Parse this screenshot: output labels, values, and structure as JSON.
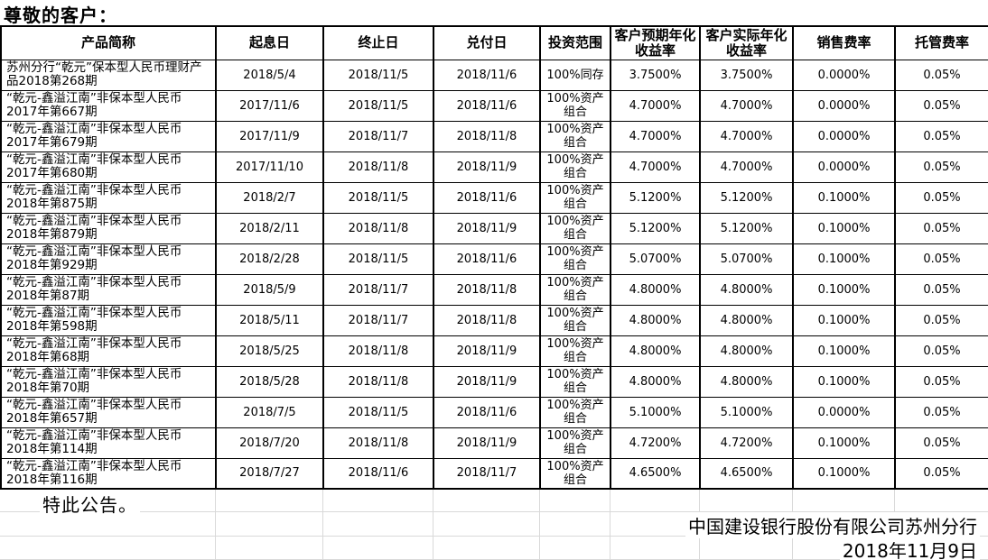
{
  "page": {
    "greeting": "尊敬的客户：",
    "closing": "特此公告。",
    "signature": "中国建设银行股份有限公司苏州分行",
    "date_line": "2018年11月9日"
  },
  "table": {
    "columns": [
      "产品简称",
      "起息日",
      "终止日",
      "兑付日",
      "投资范围",
      "客户预期年化收益率",
      "客户实际年化收益率",
      "销售费率",
      "托管费率"
    ],
    "rows": [
      [
        "苏州分行“乾元”保本型人民币理财产品2018第268期",
        "2018/5/4",
        "2018/11/5",
        "2018/11/6",
        "100%同存",
        "3.7500%",
        "3.7500%",
        "0.0000%",
        "0.05%"
      ],
      [
        "“乾元-鑫溢江南”非保本型人民币2017年第667期",
        "2017/11/6",
        "2018/11/5",
        "2018/11/6",
        "100%资产组合",
        "4.7000%",
        "4.7000%",
        "0.0000%",
        "0.05%"
      ],
      [
        "“乾元-鑫溢江南”非保本型人民币2017年第679期",
        "2017/11/9",
        "2018/11/7",
        "2018/11/8",
        "100%资产组合",
        "4.7000%",
        "4.7000%",
        "0.0000%",
        "0.05%"
      ],
      [
        "“乾元-鑫溢江南”非保本型人民币2017年第680期",
        "2017/11/10",
        "2018/11/8",
        "2018/11/9",
        "100%资产组合",
        "4.7000%",
        "4.7000%",
        "0.0000%",
        "0.05%"
      ],
      [
        "“乾元-鑫溢江南”非保本型人民币2018年第875期",
        "2018/2/7",
        "2018/11/5",
        "2018/11/6",
        "100%资产组合",
        "5.1200%",
        "5.1200%",
        "0.1000%",
        "0.05%"
      ],
      [
        "“乾元-鑫溢江南”非保本型人民币2018年第879期",
        "2018/2/11",
        "2018/11/8",
        "2018/11/9",
        "100%资产组合",
        "5.1200%",
        "5.1200%",
        "0.1000%",
        "0.05%"
      ],
      [
        "“乾元-鑫溢江南”非保本型人民币2018年第929期",
        "2018/2/28",
        "2018/11/5",
        "2018/11/6",
        "100%资产组合",
        "5.0700%",
        "5.0700%",
        "0.1000%",
        "0.05%"
      ],
      [
        "“乾元-鑫溢江南”非保本型人民币2018年第87期",
        "2018/5/9",
        "2018/11/7",
        "2018/11/8",
        "100%资产组合",
        "4.8000%",
        "4.8000%",
        "0.1000%",
        "0.05%"
      ],
      [
        "“乾元-鑫溢江南”非保本型人民币2018年第598期",
        "2018/5/11",
        "2018/11/7",
        "2018/11/8",
        "100%资产组合",
        "4.8000%",
        "4.8000%",
        "0.1000%",
        "0.05%"
      ],
      [
        "“乾元-鑫溢江南”非保本型人民币2018年第68期",
        "2018/5/25",
        "2018/11/8",
        "2018/11/9",
        "100%资产组合",
        "4.8000%",
        "4.8000%",
        "0.1000%",
        "0.05%"
      ],
      [
        "“乾元-鑫溢江南”非保本型人民币2018年第70期",
        "2018/5/28",
        "2018/11/8",
        "2018/11/9",
        "100%资产组合",
        "4.8000%",
        "4.8000%",
        "0.1000%",
        "0.05%"
      ],
      [
        "“乾元-鑫溢江南”非保本型人民币2018年第657期",
        "2018/7/5",
        "2018/11/5",
        "2018/11/6",
        "100%资产组合",
        "5.1000%",
        "5.1000%",
        "0.0000%",
        "0.05%"
      ],
      [
        "“乾元-鑫溢江南”非保本型人民币2018年第114期",
        "2018/7/20",
        "2018/11/8",
        "2018/11/9",
        "100%资产组合",
        "4.7200%",
        "4.7200%",
        "0.1000%",
        "0.05%"
      ],
      [
        "“乾元-鑫溢江南”非保本型人民币2018年第116期",
        "2018/7/27",
        "2018/11/6",
        "2018/11/7",
        "100%资产组合",
        "4.6500%",
        "4.6500%",
        "0.1000%",
        "0.05%"
      ]
    ]
  },
  "colors": {
    "text": "#000000",
    "table_border": "#000000",
    "gridline": "#d9d9d9",
    "background": "#ffffff"
  }
}
